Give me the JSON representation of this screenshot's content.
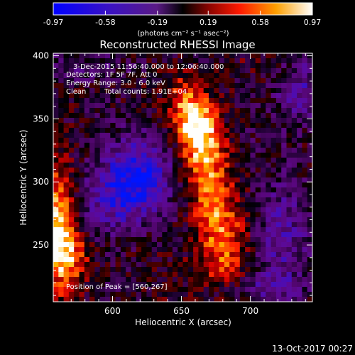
{
  "chart_data": {
    "type": "heatmap",
    "title": "Reconstructed RHESSI Image",
    "xlabel": "Heliocentric X (arcsec)",
    "ylabel": "Heliocentric Y (arcsec)",
    "xlim": [
      557,
      745
    ],
    "ylim": [
      205,
      402
    ],
    "x_ticks": [
      600,
      650,
      700
    ],
    "y_ticks": [
      250,
      300,
      350,
      400
    ],
    "colorbar": {
      "ticks": [
        -0.97,
        -0.58,
        -0.19,
        0.19,
        0.58,
        0.97
      ],
      "tick_labels": [
        "-0.97",
        "-0.58",
        "-0.19",
        "0.19",
        "0.58",
        "0.97"
      ],
      "units": "(photons cm⁻² s⁻¹ asec⁻²)",
      "range": [
        -0.97,
        0.97
      ]
    },
    "annotations": {
      "time_range": "3-Dec-2015 11:56:40.000 to 12:06:40.000",
      "detectors": "Detectors: 1F 5F 7F, Att 0",
      "energy": "Energy Range: 3.0 - 6.0 keV",
      "method": "Clean",
      "counts": "Total counts: 1.91E+04",
      "peak": "Position of Peak = [560,267]"
    },
    "features": [
      {
        "type": "bright_ridge",
        "x": [
          640,
          700
        ],
        "y": [
          215,
          375
        ],
        "peak_value": 0.9
      },
      {
        "type": "bright_edge_source",
        "x": [
          557,
          575
        ],
        "y": [
          225,
          320
        ],
        "peak_value": 0.97
      },
      {
        "type": "negative_lobe",
        "center": [
          612,
          298
        ],
        "value": -0.97
      },
      {
        "type": "negative_lobe",
        "center": [
          722,
          260
        ],
        "value": -0.4
      },
      {
        "type": "negative_region",
        "center": [
          735,
          375
        ],
        "value": -0.35
      },
      {
        "type": "negative_region",
        "center": [
          585,
          392
        ],
        "value": -0.2
      }
    ]
  },
  "footer": {
    "date": "13-Oct-2017 00:27"
  },
  "colors": {
    "background": "#000000",
    "text": "#ffffff"
  }
}
